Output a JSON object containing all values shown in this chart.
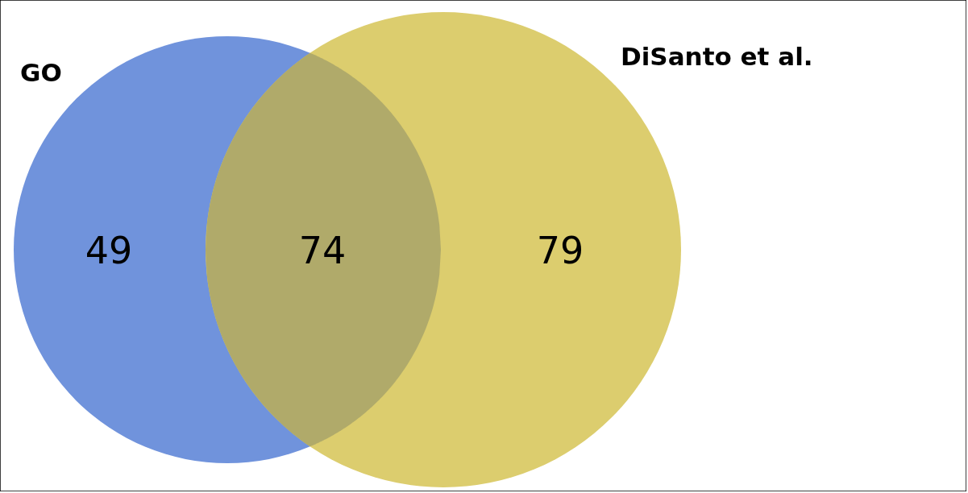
{
  "chart_data": {
    "type": "other",
    "categories": [
      null,
      null,
      null
    ],
    "values": [
      49,
      74,
      79
    ],
    "data_labels": true,
    "colors": [
      "#7093dc",
      "#b0aa6a",
      "#dccd6e"
    ],
    "annotations": [
      "GO",
      "DiSanto et al."
    ]
  }
}
